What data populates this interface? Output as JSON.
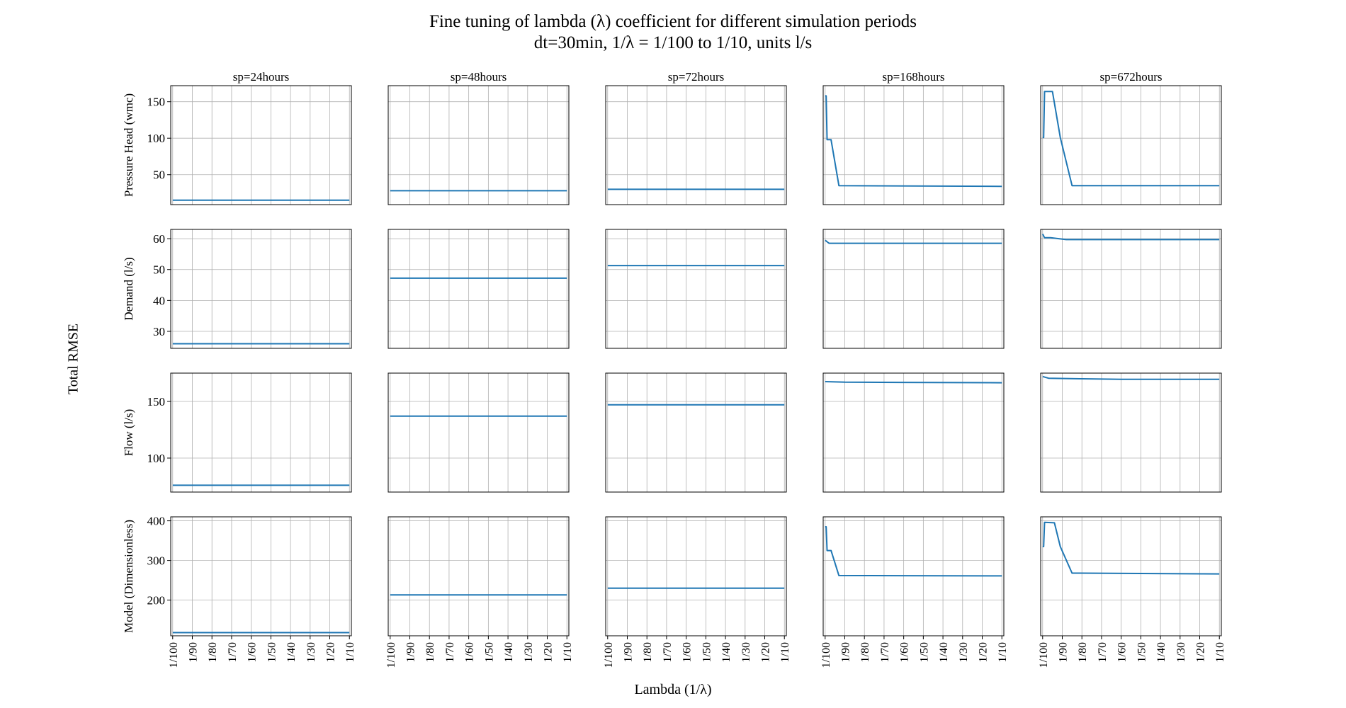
{
  "title": "Fine tuning of lambda (λ) coefficient for different simulation periods",
  "subtitle": "dt=30min, 1/λ = 1/100 to 1/10, units l/s",
  "supxlabel": "Lambda (1/λ)",
  "supylabel": "Total RMSE",
  "line_color": "#1f77b4",
  "chart_data": {
    "type": "line",
    "layout": "grid 4 rows x 5 columns, shared x axis per column, shared y axis per row",
    "grid": true,
    "x": [
      "1/100",
      "1/99",
      "1/98",
      "1/97",
      "1/96",
      "1/95",
      "1/94",
      "1/93",
      "1/92",
      "1/91",
      "1/90",
      "1/89",
      "1/88",
      "1/87",
      "1/86",
      "1/85",
      "1/84",
      "1/83",
      "1/82",
      "1/81",
      "1/80",
      "1/79",
      "1/78",
      "1/77",
      "1/76",
      "1/75",
      "1/74",
      "1/73",
      "1/72",
      "1/71",
      "1/70",
      "1/69",
      "1/68",
      "1/67",
      "1/66",
      "1/65",
      "1/64",
      "1/63",
      "1/62",
      "1/61",
      "1/60",
      "1/59",
      "1/58",
      "1/57",
      "1/56",
      "1/55",
      "1/54",
      "1/53",
      "1/52",
      "1/51",
      "1/50",
      "1/49",
      "1/48",
      "1/47",
      "1/46",
      "1/45",
      "1/44",
      "1/43",
      "1/42",
      "1/41",
      "1/40",
      "1/39",
      "1/38",
      "1/37",
      "1/36",
      "1/35",
      "1/34",
      "1/33",
      "1/32",
      "1/31",
      "1/30",
      "1/29",
      "1/28",
      "1/27",
      "1/26",
      "1/25",
      "1/24",
      "1/23",
      "1/22",
      "1/21",
      "1/20",
      "1/19",
      "1/18",
      "1/17",
      "1/16",
      "1/15",
      "1/14",
      "1/13",
      "1/12",
      "1/11",
      "1/10"
    ],
    "x_tick_labels": [
      "1/100",
      "1/90",
      "1/80",
      "1/70",
      "1/60",
      "1/50",
      "1/40",
      "1/30",
      "1/20",
      "1/10"
    ],
    "columns": [
      "sp=24hours",
      "sp=48hours",
      "sp=72hours",
      "sp=168hours",
      "sp=672hours"
    ],
    "rows": [
      {
        "ylabel": "Pressure Head (wmc)",
        "ylim": [
          9,
          172
        ],
        "yticks": [
          50,
          100,
          150
        ],
        "panels": [
          {
            "values": [
              [
                0,
                15
              ],
              [
                90,
                15
              ]
            ]
          },
          {
            "values": [
              [
                0,
                28
              ],
              [
                90,
                28
              ]
            ]
          },
          {
            "values": [
              [
                0,
                30
              ],
              [
                90,
                30
              ]
            ]
          },
          {
            "values": [
              [
                0,
                158
              ],
              [
                0.5,
                158
              ],
              [
                1,
                98
              ],
              [
                2,
                98
              ],
              [
                3,
                98
              ],
              [
                7,
                35
              ],
              [
                90,
                34
              ]
            ]
          },
          {
            "values": [
              [
                0,
                101
              ],
              [
                0.5,
                101
              ],
              [
                1,
                164
              ],
              [
                5,
                164
              ],
              [
                9,
                101
              ],
              [
                15,
                35
              ],
              [
                90,
                35
              ]
            ]
          }
        ]
      },
      {
        "ylabel": "Demand (l/s)",
        "ylim": [
          24.5,
          63
        ],
        "yticks": [
          30,
          40,
          50,
          60
        ],
        "panels": [
          {
            "values": [
              [
                0,
                26
              ],
              [
                90,
                26
              ]
            ]
          },
          {
            "values": [
              [
                0,
                47.2
              ],
              [
                90,
                47.2
              ]
            ]
          },
          {
            "values": [
              [
                0,
                51.3
              ],
              [
                90,
                51.3
              ]
            ]
          },
          {
            "values": [
              [
                0,
                59.5
              ],
              [
                1,
                59
              ],
              [
                2,
                58.5
              ],
              [
                90,
                58.5
              ]
            ]
          },
          {
            "values": [
              [
                0,
                61.5
              ],
              [
                1,
                60.3
              ],
              [
                4,
                60.3
              ],
              [
                12,
                59.7
              ],
              [
                90,
                59.7
              ]
            ]
          }
        ]
      },
      {
        "ylabel": "Flow (l/s)",
        "ylim": [
          70,
          175
        ],
        "yticks": [
          100,
          150
        ],
        "panels": [
          {
            "values": [
              [
                0,
                76
              ],
              [
                90,
                76
              ]
            ]
          },
          {
            "values": [
              [
                0,
                137
              ],
              [
                90,
                137
              ]
            ]
          },
          {
            "values": [
              [
                0,
                147
              ],
              [
                90,
                147
              ]
            ]
          },
          {
            "values": [
              [
                0,
                167.5
              ],
              [
                10,
                167
              ],
              [
                90,
                166.5
              ]
            ]
          },
          {
            "values": [
              [
                0,
                172
              ],
              [
                3,
                170.5
              ],
              [
                20,
                170
              ],
              [
                40,
                169.5
              ],
              [
                90,
                169.5
              ]
            ]
          }
        ]
      },
      {
        "ylabel": "Model (Dimensionless)",
        "ylim": [
          110,
          410
        ],
        "yticks": [
          200,
          300,
          400
        ],
        "panels": [
          {
            "values": [
              [
                0,
                118
              ],
              [
                90,
                118
              ]
            ]
          },
          {
            "values": [
              [
                0,
                213
              ],
              [
                90,
                213
              ]
            ]
          },
          {
            "values": [
              [
                0,
                230
              ],
              [
                90,
                230
              ]
            ]
          },
          {
            "values": [
              [
                0,
                385
              ],
              [
                0.5,
                385
              ],
              [
                1,
                325
              ],
              [
                3,
                325
              ],
              [
                7,
                262
              ],
              [
                90,
                261
              ]
            ]
          },
          {
            "values": [
              [
                0,
                335
              ],
              [
                0.5,
                335
              ],
              [
                1,
                396
              ],
              [
                6,
                395
              ],
              [
                9,
                335
              ],
              [
                15,
                268
              ],
              [
                90,
                266
              ]
            ]
          }
        ]
      }
    ]
  }
}
